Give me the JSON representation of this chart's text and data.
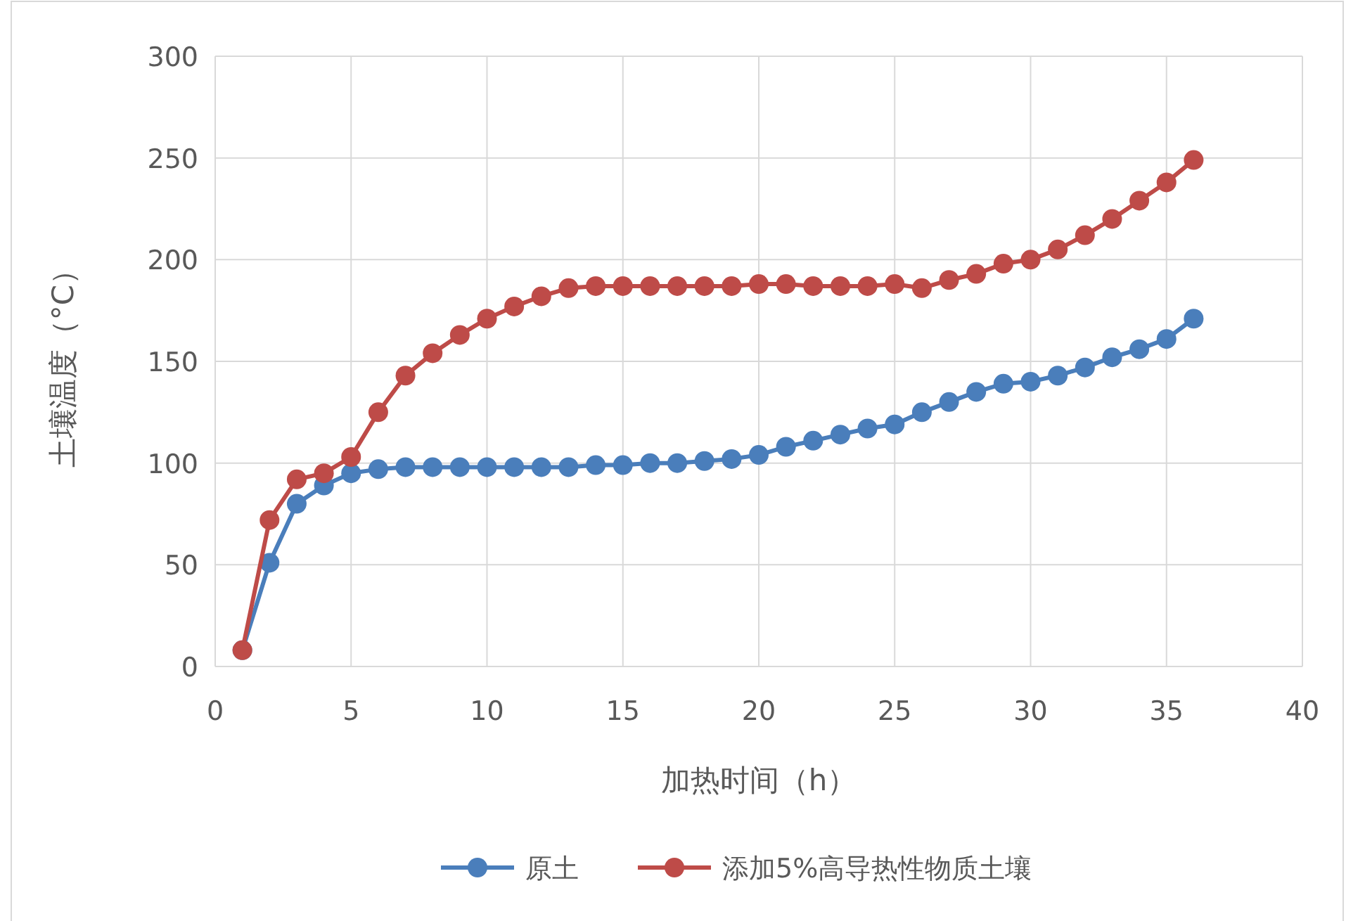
{
  "chart_data": {
    "type": "line",
    "xlabel": "加热时间（h）",
    "ylabel": "土壤温度（°C）",
    "x": [
      1,
      2,
      3,
      4,
      5,
      6,
      7,
      8,
      9,
      10,
      11,
      12,
      13,
      14,
      15,
      16,
      17,
      18,
      19,
      20,
      21,
      22,
      23,
      24,
      25,
      26,
      27,
      28,
      29,
      30,
      31,
      32,
      33,
      34,
      35,
      36
    ],
    "series": [
      {
        "name": "原土",
        "color": "#4a7ebb",
        "values": [
          8,
          51,
          80,
          89,
          95,
          97,
          98,
          98,
          98,
          98,
          98,
          98,
          98,
          99,
          99,
          100,
          100,
          101,
          102,
          104,
          108,
          111,
          114,
          117,
          119,
          125,
          130,
          135,
          139,
          140,
          143,
          147,
          152,
          156,
          161,
          171
        ]
      },
      {
        "name": "添加5%高导热性物质土壤",
        "color": "#be4b48",
        "values": [
          8,
          72,
          92,
          95,
          103,
          125,
          143,
          154,
          163,
          171,
          177,
          182,
          186,
          187,
          187,
          187,
          187,
          187,
          187,
          188,
          188,
          187,
          187,
          187,
          188,
          186,
          190,
          193,
          198,
          200,
          205,
          212,
          220,
          229,
          238,
          249
        ]
      }
    ],
    "xlim": [
      0,
      40
    ],
    "xticks": [
      0,
      5,
      10,
      15,
      20,
      25,
      30,
      35,
      40
    ],
    "ylim": [
      0,
      300
    ],
    "yticks": [
      0,
      50,
      100,
      150,
      200,
      250,
      300
    ],
    "grid": true,
    "legend": "bottom",
    "marker": "circle",
    "line_style": "solid"
  }
}
